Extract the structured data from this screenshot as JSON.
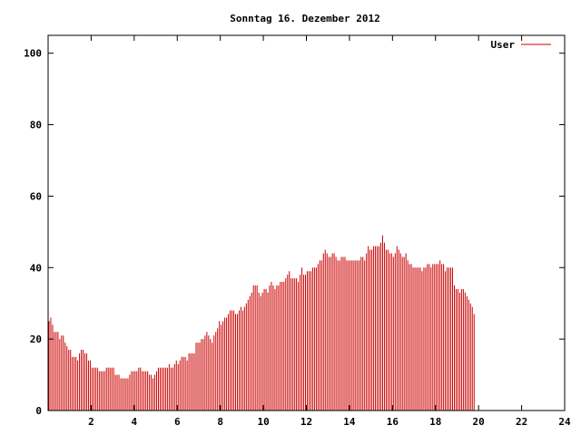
{
  "chart_data": {
    "type": "bar",
    "title": "Sonntag 16. Dezember 2012",
    "xlabel": "",
    "ylabel": "",
    "xlim": [
      0,
      24
    ],
    "ylim": [
      0,
      105
    ],
    "x_ticks": [
      "2",
      "4",
      "6",
      "8",
      "10",
      "12",
      "14",
      "16",
      "18",
      "20",
      "22",
      "24"
    ],
    "y_ticks": [
      "0",
      "20",
      "40",
      "60",
      "80",
      "100"
    ],
    "legend_position": "top-right",
    "grid": false,
    "series": [
      {
        "name": "User",
        "color": "#cc0000",
        "interval_minutes": 5,
        "values": [
          25,
          26,
          24,
          22,
          22,
          22,
          20,
          21,
          21,
          19,
          18,
          17,
          17,
          15,
          15,
          15,
          14,
          16,
          17,
          17,
          16,
          16,
          14,
          14,
          12,
          12,
          12,
          12,
          11,
          11,
          11,
          11,
          12,
          12,
          12,
          12,
          12,
          10,
          10,
          10,
          9,
          9,
          9,
          9,
          9,
          10,
          11,
          11,
          11,
          11,
          12,
          12,
          11,
          11,
          11,
          11,
          10,
          10,
          9,
          10,
          11,
          12,
          12,
          12,
          12,
          12,
          12,
          13,
          12,
          12,
          13,
          14,
          13,
          14,
          15,
          15,
          15,
          14,
          16,
          16,
          16,
          16,
          19,
          19,
          19,
          20,
          20,
          21,
          22,
          21,
          20,
          19,
          21,
          22,
          23,
          25,
          24,
          25,
          26,
          26,
          27,
          28,
          28,
          28,
          27,
          27,
          28,
          29,
          28,
          29,
          30,
          31,
          32,
          33,
          35,
          35,
          35,
          33,
          32,
          33,
          34,
          34,
          33,
          35,
          36,
          35,
          34,
          35,
          35,
          36,
          36,
          36,
          37,
          38,
          39,
          37,
          37,
          37,
          37,
          36,
          38,
          40,
          38,
          38,
          39,
          39,
          39,
          40,
          40,
          40,
          41,
          42,
          42,
          44,
          45,
          44,
          43,
          43,
          44,
          44,
          43,
          42,
          42,
          43,
          43,
          43,
          42,
          42,
          42,
          42,
          42,
          42,
          42,
          42,
          43,
          43,
          42,
          44,
          46,
          45,
          45,
          46,
          46,
          46,
          46,
          47,
          49,
          47,
          45,
          45,
          44,
          44,
          43,
          44,
          46,
          45,
          44,
          43,
          43,
          44,
          42,
          41,
          41,
          40,
          40,
          40,
          40,
          40,
          39,
          40,
          40,
          41,
          41,
          40,
          41,
          41,
          41,
          41,
          42,
          41,
          41,
          39,
          40,
          40,
          40,
          40,
          35,
          34,
          34,
          33,
          34,
          34,
          33,
          32,
          31,
          30,
          29,
          27
        ]
      }
    ]
  }
}
